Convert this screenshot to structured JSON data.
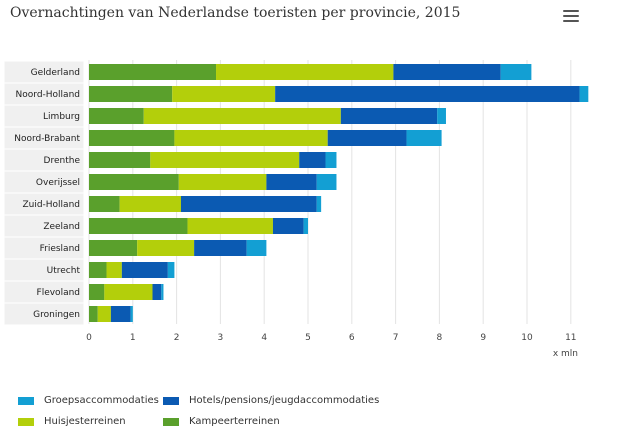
{
  "title": "Overnachtingen van Nederlandse toeristen per provincie, 2015",
  "menu_icon": "hamburger-menu-icon",
  "chart_data": {
    "type": "bar",
    "orientation": "horizontal",
    "stacked": true,
    "title": "Overnachtingen van Nederlandse toeristen per provincie, 2015",
    "xlabel": "x mln",
    "ylabel": "",
    "xlim": [
      0,
      11
    ],
    "xticks": [
      "0",
      "1",
      "2",
      "3",
      "4",
      "5",
      "6",
      "7",
      "8",
      "9",
      "10",
      "11"
    ],
    "grid": true,
    "legend_position": "bottom",
    "categories": [
      "Gelderland",
      "Noord-Holland",
      "Limburg",
      "Noord-Brabant",
      "Drenthe",
      "Overijssel",
      "Zuid-Holland",
      "Zeeland",
      "Friesland",
      "Utrecht",
      "Flevoland",
      "Groningen"
    ],
    "series": [
      {
        "name": "Kampeerterreinen",
        "color": "#5aa02c",
        "values": [
          2.9,
          1.9,
          1.25,
          1.95,
          1.4,
          2.05,
          0.7,
          2.25,
          1.1,
          0.4,
          0.35,
          0.2
        ]
      },
      {
        "name": "Huisjesterreinen",
        "color": "#b3cf0b",
        "values": [
          4.05,
          2.35,
          4.5,
          3.5,
          3.4,
          2.0,
          1.4,
          1.95,
          1.3,
          0.35,
          1.1,
          0.3
        ]
      },
      {
        "name": "Hotels/pensions/jeugdaccommodaties",
        "color": "#0b5ab2",
        "values": [
          2.45,
          6.95,
          2.2,
          1.8,
          0.6,
          1.15,
          3.1,
          0.7,
          1.2,
          1.05,
          0.2,
          0.45
        ]
      },
      {
        "name": "Groepsaccommodaties",
        "color": "#139fd3",
        "values": [
          0.7,
          0.2,
          0.2,
          0.8,
          0.25,
          0.45,
          0.1,
          0.1,
          0.45,
          0.15,
          0.05,
          0.05
        ]
      }
    ]
  },
  "legend": [
    {
      "label": "Groepsaccommodaties",
      "color": "#139fd3"
    },
    {
      "label": "Hotels/pensions/jeugdaccommodaties",
      "color": "#0b5ab2"
    },
    {
      "label": "Huisjesterreinen",
      "color": "#b3cf0b"
    },
    {
      "label": "Kampeerterreinen",
      "color": "#5aa02c"
    }
  ]
}
